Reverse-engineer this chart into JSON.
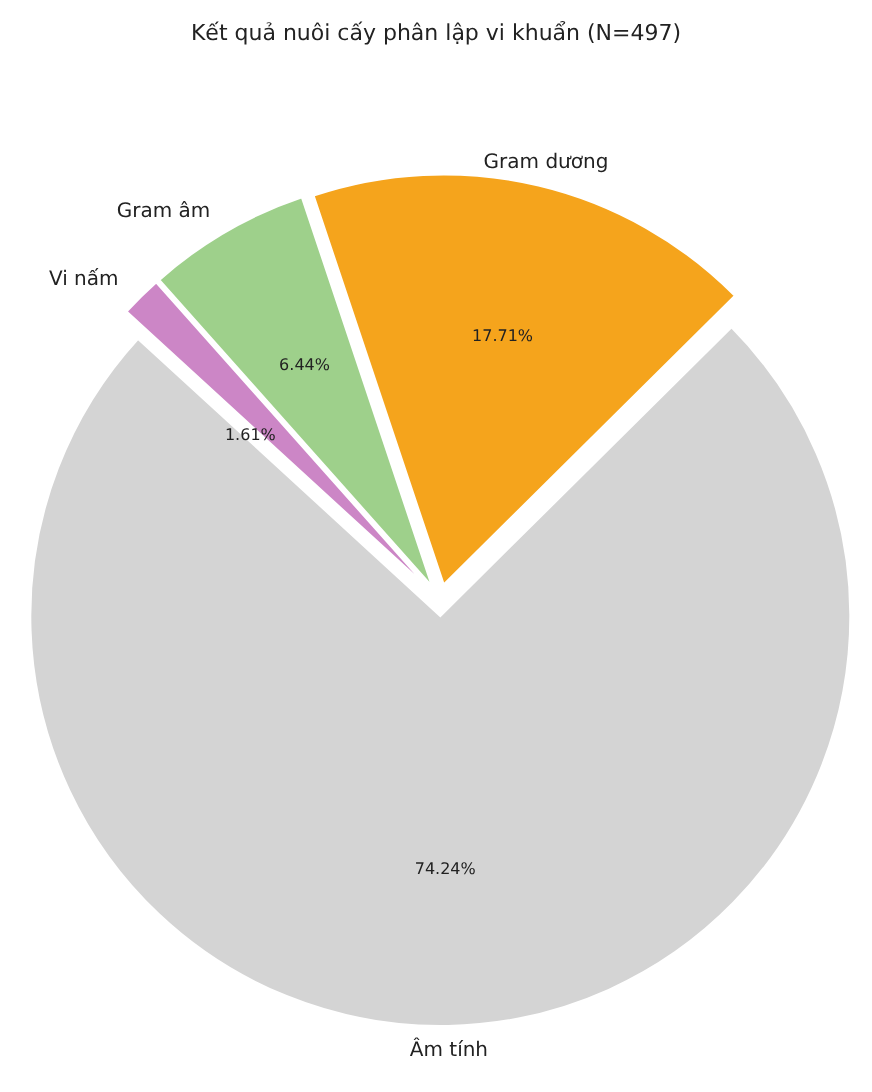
{
  "chart_data": {
    "type": "pie",
    "title": "Kết quả nuôi cấy phân lập vi khuẩn (N=497)",
    "categories": [
      "Gram dương",
      "Âm tính",
      "Vi nấm",
      "Gram âm"
    ],
    "values": [
      17.71,
      74.24,
      1.61,
      6.44
    ],
    "value_labels": [
      "17.71%",
      "74.24%",
      "1.61%",
      "6.44%"
    ],
    "colors": [
      "#f5a41c",
      "#d4d4d4",
      "#cc86c6",
      "#9ed08b"
    ]
  }
}
